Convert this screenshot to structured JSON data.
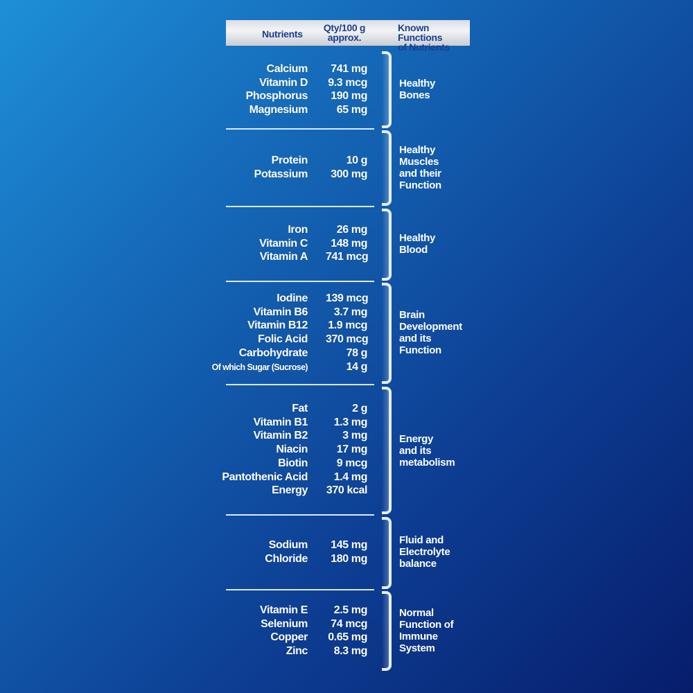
{
  "header": {
    "nutrients": "Nutrients",
    "qty_line1": "Qty/100 g",
    "qty_line2": "approx.",
    "func_line1": "Known Functions",
    "func_line2": "of Nutrients"
  },
  "groups": [
    {
      "function": [
        "Healthy",
        "Bones"
      ],
      "items": [
        {
          "name": "Calcium",
          "qty": "741 mg"
        },
        {
          "name": "Vitamin D",
          "qty": "9.3 mcg"
        },
        {
          "name": "Phosphorus",
          "qty": "190 mg"
        },
        {
          "name": "Magnesium",
          "qty": "65 mg"
        }
      ]
    },
    {
      "function": [
        "Healthy",
        "Muscles",
        "and their",
        "Function"
      ],
      "items": [
        {
          "name": "Protein",
          "qty": "10 g"
        },
        {
          "name": "Potassium",
          "qty": "300 mg"
        }
      ]
    },
    {
      "function": [
        "Healthy",
        "Blood"
      ],
      "items": [
        {
          "name": "Iron",
          "qty": "26 mg"
        },
        {
          "name": "Vitamin C",
          "qty": "148 mg"
        },
        {
          "name": "Vitamin A",
          "qty": "741 mcg"
        }
      ]
    },
    {
      "function": [
        "Brain",
        "Development",
        "and its",
        "Function"
      ],
      "items": [
        {
          "name": "Iodine",
          "qty": "139 mcg"
        },
        {
          "name": "Vitamin B6",
          "qty": "3.7 mg"
        },
        {
          "name": "Vitamin B12",
          "qty": "1.9 mcg"
        },
        {
          "name": "Folic Acid",
          "qty": "370 mcg"
        },
        {
          "name": "Carbohydrate",
          "qty": "78 g"
        },
        {
          "name": "Of which Sugar (Sucrose)",
          "qty": "14 g"
        }
      ]
    },
    {
      "function": [
        "Energy",
        "and its",
        "metabolism"
      ],
      "items": [
        {
          "name": "Fat",
          "qty": "2 g"
        },
        {
          "name": "Vitamin B1",
          "qty": "1.3 mg"
        },
        {
          "name": "Vitamin B2",
          "qty": "3 mg"
        },
        {
          "name": "Niacin",
          "qty": "17 mg"
        },
        {
          "name": "Biotin",
          "qty": "9 mcg"
        },
        {
          "name": "Pantothenic Acid",
          "qty": "1.4 mg"
        },
        {
          "name": "Energy",
          "qty": "370 kcal"
        }
      ]
    },
    {
      "function": [
        "Fluid and",
        "Electrolyte",
        "balance"
      ],
      "items": [
        {
          "name": "Sodium",
          "qty": "145 mg"
        },
        {
          "name": "Chloride",
          "qty": "180 mg"
        }
      ]
    },
    {
      "function": [
        "Normal",
        "Function of",
        "Immune",
        "System"
      ],
      "items": [
        {
          "name": "Vitamin E",
          "qty": "2.5 mg"
        },
        {
          "name": "Selenium",
          "qty": "74 mcg"
        },
        {
          "name": "Copper",
          "qty": "0.65 mg"
        },
        {
          "name": "Zinc",
          "qty": "8.3 mg"
        }
      ]
    }
  ]
}
